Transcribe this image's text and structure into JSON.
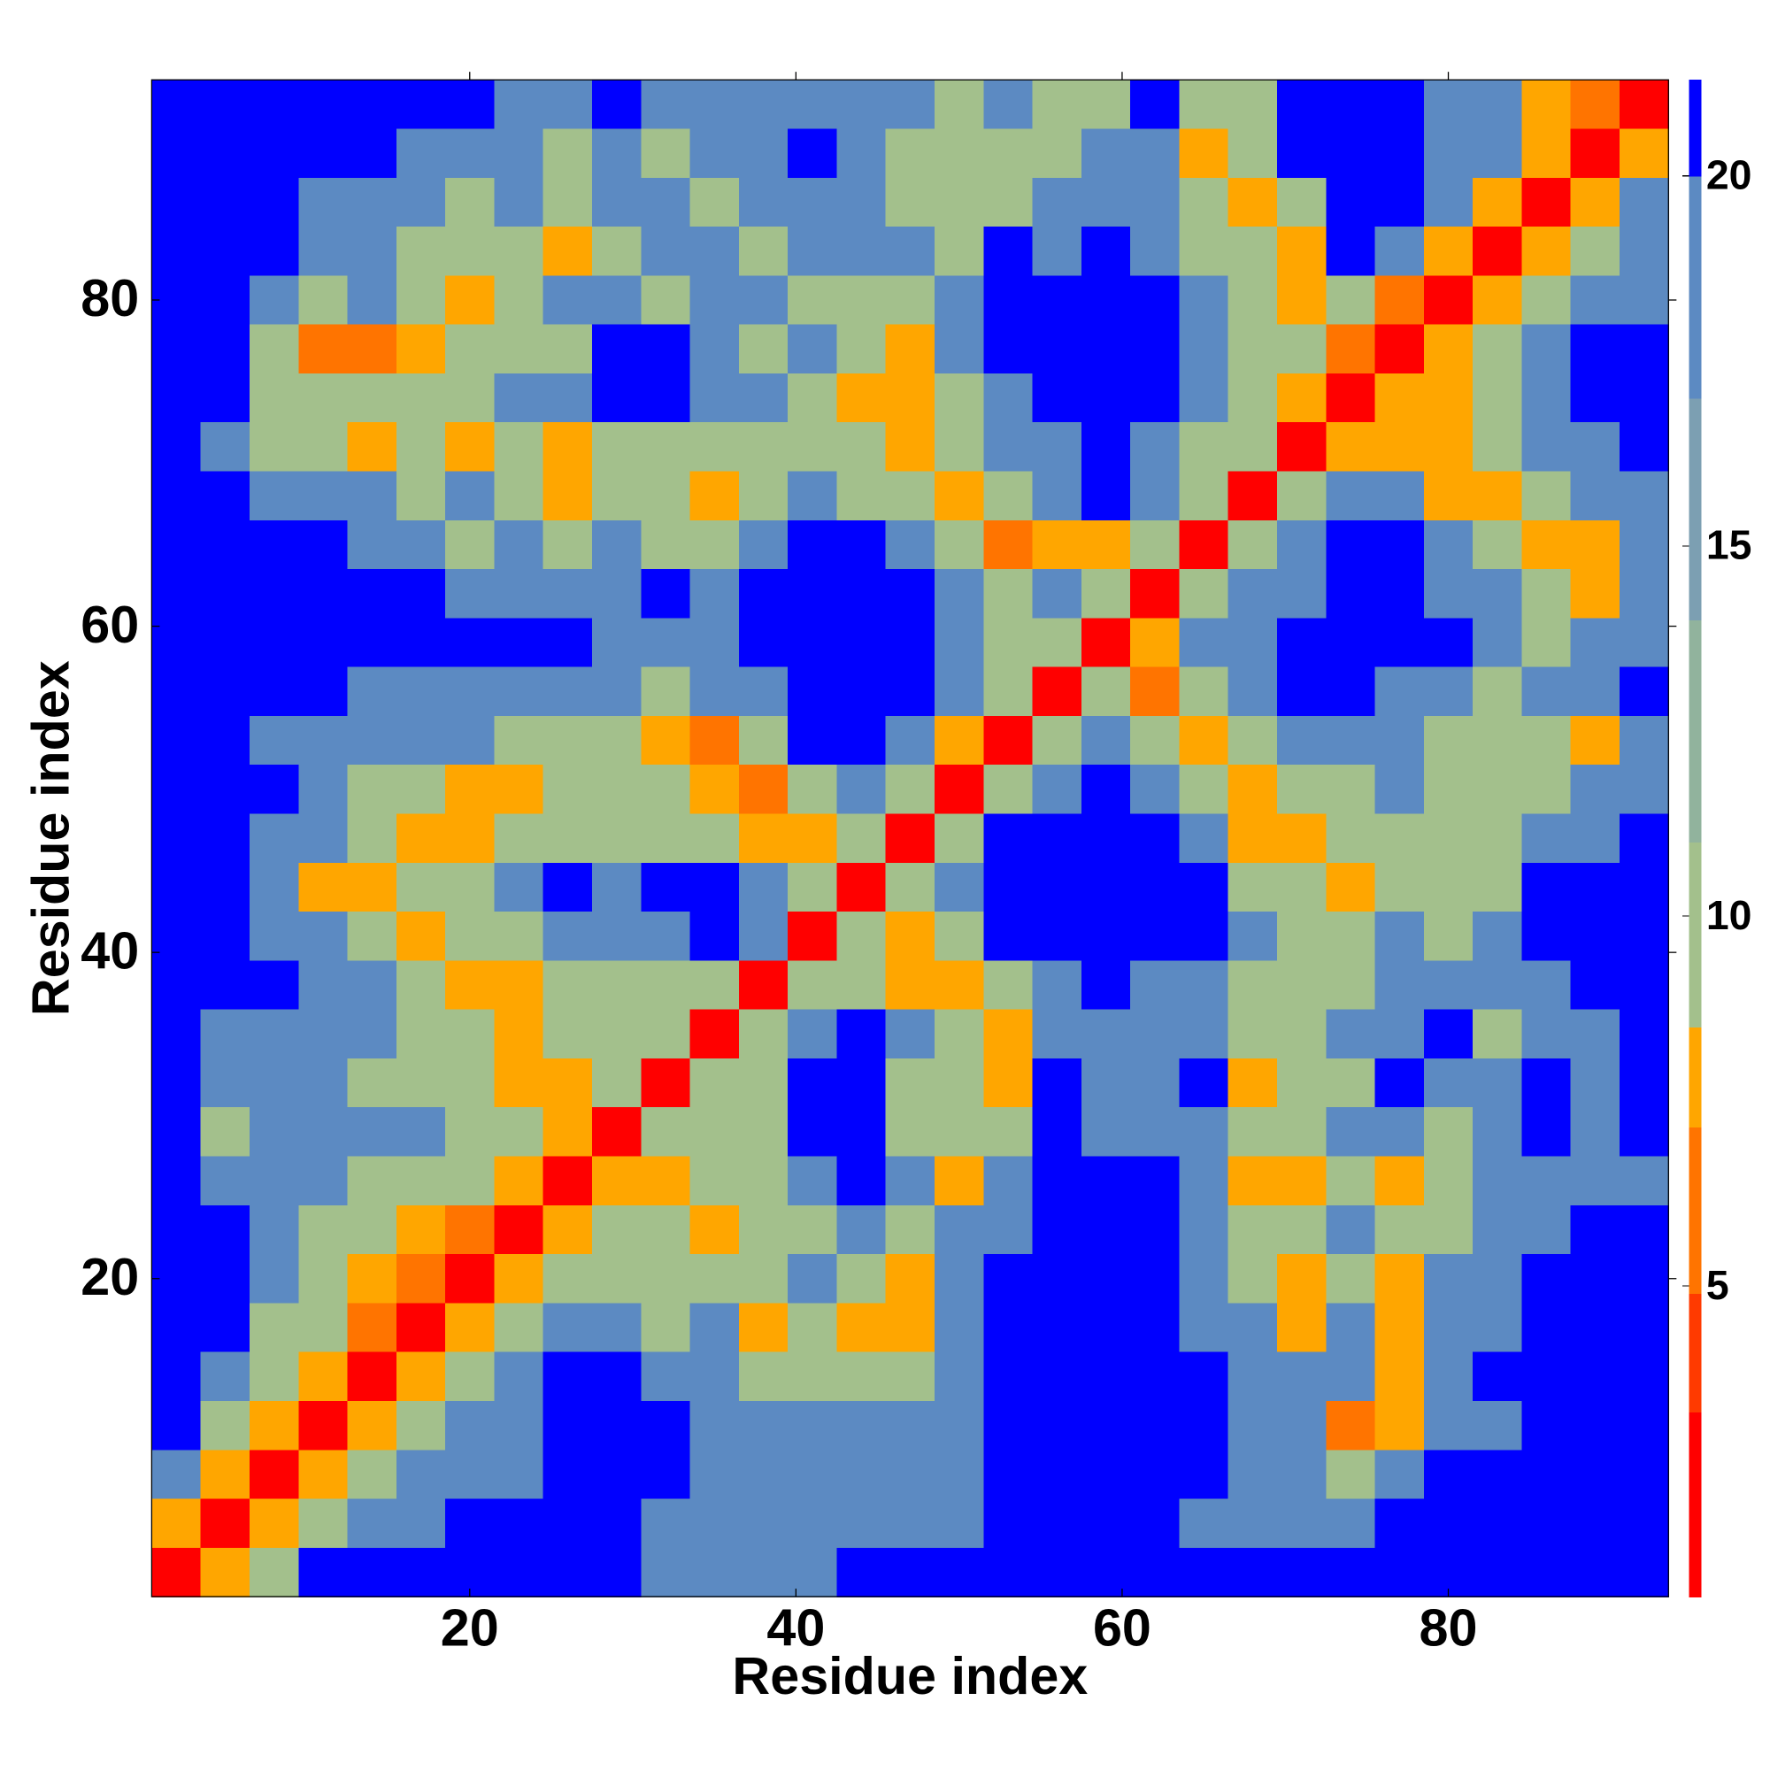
{
  "chart_data": {
    "type": "heatmap",
    "x_label": "Residue index",
    "y_label": "Residue index",
    "x": [
      2,
      5,
      8,
      11,
      14,
      17,
      20,
      23,
      26,
      29,
      32,
      35,
      38,
      41,
      44,
      47,
      50,
      53,
      56,
      59,
      62,
      65,
      68,
      71,
      74,
      77,
      80,
      83,
      86,
      89,
      92
    ],
    "y": [
      92,
      89,
      86,
      83,
      80,
      77,
      74,
      71,
      68,
      65,
      62,
      59,
      56,
      53,
      50,
      47,
      44,
      41,
      38,
      35,
      32,
      29,
      26,
      23,
      20,
      17,
      14,
      11,
      8,
      5,
      2
    ],
    "z": [
      [
        21,
        21,
        21,
        21,
        21,
        21,
        21,
        18,
        18,
        21,
        18,
        18,
        18,
        18,
        18,
        18,
        10,
        18,
        10,
        10,
        21,
        10,
        10,
        21,
        21,
        21,
        18,
        18,
        8,
        6,
        2
      ],
      [
        21,
        21,
        21,
        21,
        21,
        18,
        18,
        18,
        10,
        18,
        10,
        18,
        18,
        21,
        18,
        10,
        10,
        10,
        10,
        18,
        18,
        8,
        10,
        21,
        21,
        21,
        18,
        18,
        8,
        2,
        8
      ],
      [
        21,
        21,
        21,
        18,
        18,
        18,
        10,
        18,
        10,
        18,
        18,
        10,
        18,
        18,
        18,
        10,
        10,
        10,
        18,
        18,
        18,
        10,
        8,
        10,
        21,
        21,
        18,
        8,
        2,
        8,
        18
      ],
      [
        21,
        21,
        21,
        18,
        18,
        10,
        10,
        10,
        8,
        10,
        18,
        18,
        10,
        18,
        18,
        18,
        10,
        21,
        18,
        21,
        18,
        10,
        10,
        8,
        21,
        18,
        8,
        2,
        8,
        10,
        18
      ],
      [
        21,
        21,
        18,
        10,
        18,
        10,
        8,
        10,
        18,
        18,
        10,
        18,
        18,
        10,
        10,
        10,
        18,
        21,
        21,
        21,
        21,
        18,
        10,
        8,
        10,
        6,
        2,
        8,
        10,
        18,
        18
      ],
      [
        21,
        21,
        10,
        6,
        6,
        8,
        10,
        10,
        10,
        21,
        21,
        18,
        10,
        18,
        10,
        8,
        18,
        21,
        21,
        21,
        21,
        18,
        10,
        10,
        6,
        2,
        8,
        10,
        18,
        21,
        21
      ],
      [
        21,
        21,
        10,
        10,
        10,
        10,
        10,
        18,
        18,
        21,
        21,
        18,
        18,
        10,
        8,
        8,
        10,
        18,
        21,
        21,
        21,
        18,
        10,
        8,
        2,
        8,
        8,
        10,
        18,
        21,
        21
      ],
      [
        21,
        18,
        10,
        10,
        8,
        10,
        8,
        10,
        8,
        10,
        10,
        10,
        10,
        10,
        10,
        8,
        10,
        18,
        18,
        21,
        18,
        10,
        10,
        2,
        8,
        8,
        8,
        10,
        18,
        18,
        21
      ],
      [
        21,
        21,
        18,
        18,
        18,
        10,
        18,
        10,
        8,
        10,
        10,
        8,
        10,
        18,
        10,
        10,
        8,
        10,
        18,
        21,
        18,
        10,
        2,
        10,
        18,
        18,
        8,
        8,
        10,
        18,
        18
      ],
      [
        21,
        21,
        21,
        21,
        18,
        18,
        10,
        18,
        10,
        18,
        10,
        10,
        18,
        21,
        21,
        18,
        10,
        6,
        8,
        8,
        10,
        2,
        10,
        18,
        21,
        21,
        18,
        10,
        8,
        8,
        18
      ],
      [
        21,
        21,
        21,
        21,
        21,
        21,
        18,
        18,
        18,
        18,
        21,
        18,
        21,
        21,
        21,
        21,
        18,
        10,
        18,
        10,
        2,
        10,
        18,
        18,
        21,
        21,
        18,
        18,
        10,
        8,
        18
      ],
      [
        21,
        21,
        21,
        21,
        21,
        21,
        21,
        21,
        21,
        18,
        18,
        18,
        21,
        21,
        21,
        21,
        18,
        10,
        10,
        2,
        8,
        18,
        18,
        21,
        21,
        21,
        21,
        18,
        10,
        18,
        18
      ],
      [
        21,
        21,
        21,
        21,
        18,
        18,
        18,
        18,
        18,
        18,
        10,
        18,
        18,
        21,
        21,
        21,
        18,
        10,
        2,
        10,
        6,
        10,
        18,
        21,
        21,
        18,
        18,
        10,
        18,
        18,
        21
      ],
      [
        21,
        21,
        18,
        18,
        18,
        18,
        18,
        10,
        10,
        10,
        8,
        6,
        10,
        21,
        21,
        18,
        8,
        2,
        10,
        18,
        10,
        8,
        10,
        18,
        18,
        18,
        10,
        10,
        10,
        8,
        18
      ],
      [
        21,
        21,
        21,
        18,
        10,
        10,
        8,
        8,
        10,
        10,
        10,
        8,
        6,
        10,
        18,
        10,
        2,
        10,
        18,
        21,
        18,
        10,
        8,
        10,
        10,
        18,
        10,
        10,
        10,
        18,
        18
      ],
      [
        21,
        21,
        18,
        18,
        10,
        8,
        8,
        10,
        10,
        10,
        10,
        10,
        8,
        8,
        10,
        2,
        10,
        21,
        21,
        21,
        21,
        18,
        8,
        8,
        10,
        10,
        10,
        10,
        18,
        18,
        21
      ],
      [
        21,
        21,
        18,
        8,
        8,
        10,
        10,
        18,
        21,
        18,
        21,
        21,
        18,
        10,
        2,
        10,
        18,
        21,
        21,
        21,
        21,
        21,
        10,
        10,
        8,
        10,
        10,
        10,
        21,
        21,
        21
      ],
      [
        21,
        21,
        18,
        18,
        10,
        8,
        10,
        10,
        18,
        18,
        18,
        21,
        18,
        2,
        10,
        8,
        10,
        21,
        21,
        21,
        21,
        21,
        18,
        10,
        10,
        18,
        10,
        18,
        21,
        21,
        21
      ],
      [
        21,
        21,
        21,
        18,
        18,
        10,
        8,
        8,
        10,
        10,
        10,
        10,
        2,
        10,
        10,
        8,
        8,
        10,
        18,
        21,
        18,
        18,
        10,
        10,
        10,
        18,
        18,
        18,
        18,
        21,
        21
      ],
      [
        21,
        18,
        18,
        18,
        18,
        10,
        10,
        8,
        10,
        10,
        10,
        2,
        10,
        18,
        21,
        18,
        10,
        8,
        18,
        18,
        18,
        18,
        10,
        10,
        18,
        18,
        21,
        10,
        18,
        18,
        21
      ],
      [
        21,
        18,
        18,
        18,
        10,
        10,
        10,
        8,
        8,
        10,
        2,
        10,
        10,
        21,
        21,
        10,
        10,
        8,
        21,
        18,
        18,
        21,
        8,
        10,
        10,
        21,
        18,
        18,
        21,
        18,
        21
      ],
      [
        21,
        10,
        18,
        18,
        18,
        18,
        10,
        10,
        8,
        2,
        10,
        10,
        10,
        21,
        21,
        10,
        10,
        10,
        21,
        18,
        18,
        18,
        10,
        10,
        18,
        18,
        10,
        18,
        21,
        18,
        21
      ],
      [
        21,
        18,
        18,
        18,
        10,
        10,
        10,
        8,
        2,
        8,
        8,
        10,
        10,
        18,
        21,
        18,
        8,
        18,
        21,
        21,
        21,
        18,
        8,
        8,
        10,
        8,
        10,
        18,
        18,
        18,
        18
      ],
      [
        21,
        21,
        18,
        10,
        10,
        8,
        6,
        2,
        8,
        10,
        10,
        8,
        10,
        10,
        18,
        10,
        18,
        18,
        21,
        21,
        21,
        18,
        10,
        10,
        18,
        10,
        10,
        18,
        18,
        21,
        21
      ],
      [
        21,
        21,
        18,
        10,
        8,
        6,
        2,
        8,
        10,
        10,
        10,
        10,
        10,
        18,
        10,
        8,
        18,
        21,
        21,
        21,
        21,
        18,
        10,
        8,
        10,
        8,
        18,
        18,
        21,
        21,
        21
      ],
      [
        21,
        21,
        10,
        10,
        6,
        2,
        8,
        10,
        18,
        18,
        10,
        18,
        8,
        10,
        8,
        8,
        18,
        21,
        21,
        21,
        21,
        18,
        18,
        8,
        18,
        8,
        18,
        18,
        21,
        21,
        21
      ],
      [
        21,
        18,
        10,
        8,
        2,
        8,
        10,
        18,
        21,
        21,
        18,
        18,
        10,
        10,
        10,
        10,
        18,
        21,
        21,
        21,
        21,
        21,
        18,
        18,
        18,
        8,
        18,
        21,
        21,
        21,
        21
      ],
      [
        21,
        10,
        8,
        2,
        8,
        10,
        18,
        18,
        21,
        21,
        21,
        18,
        18,
        18,
        18,
        18,
        18,
        21,
        21,
        21,
        21,
        21,
        18,
        18,
        6,
        8,
        18,
        18,
        21,
        21,
        21
      ],
      [
        18,
        8,
        2,
        8,
        10,
        18,
        18,
        18,
        21,
        21,
        21,
        18,
        18,
        18,
        18,
        18,
        18,
        21,
        21,
        21,
        21,
        21,
        18,
        18,
        10,
        18,
        21,
        21,
        21,
        21,
        21
      ],
      [
        8,
        2,
        8,
        10,
        18,
        18,
        21,
        21,
        21,
        21,
        18,
        18,
        18,
        18,
        18,
        18,
        18,
        21,
        21,
        21,
        21,
        18,
        18,
        18,
        18,
        21,
        21,
        21,
        21,
        21,
        21
      ],
      [
        2,
        8,
        10,
        21,
        21,
        21,
        21,
        21,
        21,
        21,
        18,
        18,
        18,
        18,
        21,
        21,
        21,
        21,
        21,
        21,
        21,
        21,
        21,
        21,
        21,
        21,
        21,
        21,
        21,
        21,
        21
      ]
    ],
    "xlim": [
      0.5,
      93.5
    ],
    "ylim": [
      0.5,
      93.5
    ],
    "xticks": [
      20,
      40,
      60,
      80
    ],
    "yticks": [
      20,
      40,
      60,
      80
    ],
    "colorbar": {
      "lim": [
        0.8,
        21.3
      ],
      "ticks": [
        5,
        10,
        15,
        20
      ],
      "bands": [
        {
          "from": 0.8,
          "to": 3.3,
          "color": "#ff0000"
        },
        {
          "from": 3.3,
          "to": 4.9,
          "color": "#ff3a00"
        },
        {
          "from": 4.9,
          "to": 7.15,
          "color": "#ff7400"
        },
        {
          "from": 7.15,
          "to": 8.5,
          "color": "#ffa600"
        },
        {
          "from": 8.5,
          "to": 11,
          "color": "#a3c08c"
        },
        {
          "from": 11,
          "to": 14,
          "color": "#91b39d"
        },
        {
          "from": 14,
          "to": 17,
          "color": "#7c9fb2"
        },
        {
          "from": 17,
          "to": 20,
          "color": "#5c8ac2"
        },
        {
          "from": 20,
          "to": 21.3,
          "color": "#0000ff"
        }
      ]
    }
  }
}
